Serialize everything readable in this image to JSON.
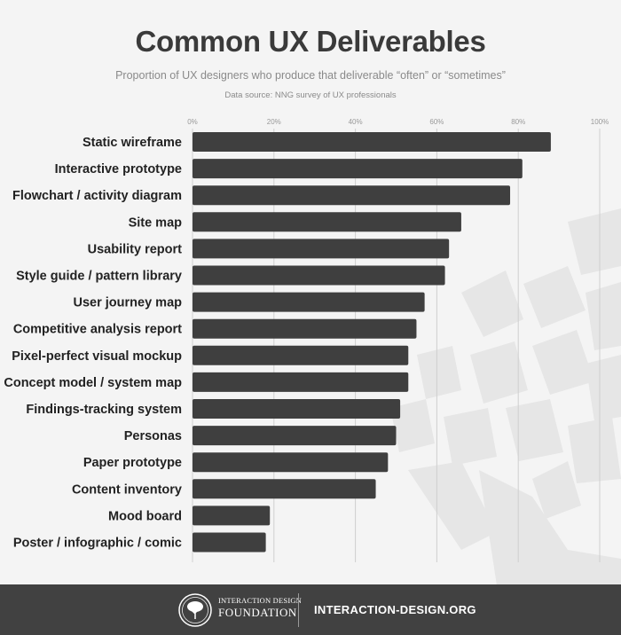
{
  "header": {
    "title": "Common UX Deliverables",
    "subtitle": "Proportion of UX designers who produce that deliverable “often” or “sometimes”",
    "source": "Data source: NNG survey of UX professionals"
  },
  "footer": {
    "org_line1": "INTERACTION DESIGN",
    "org_line2": "FOUNDATION",
    "url": "INTERACTION-DESIGN.ORG"
  },
  "colors": {
    "bar": "#3f3f3f",
    "background": "#f4f4f4",
    "footer": "#414141",
    "grid": "#cfcfcf"
  },
  "chart_data": {
    "type": "bar",
    "orientation": "horizontal",
    "title": "Common UX Deliverables",
    "xlim": [
      0,
      100
    ],
    "xticks": [
      "0%",
      "20%",
      "40%",
      "60%",
      "80%",
      "100%"
    ],
    "grid": true,
    "categories": [
      "Static wireframe",
      "Interactive prototype",
      "Flowchart / activity diagram",
      "Site map",
      "Usability report",
      "Style guide / pattern library",
      "User journey map",
      "Competitive analysis report",
      "Pixel-perfect visual mockup",
      "Concept model / system map",
      "Findings-tracking system",
      "Personas",
      "Paper prototype",
      "Content inventory",
      "Mood board",
      "Poster / infographic / comic"
    ],
    "values": [
      88,
      81,
      78,
      66,
      63,
      62,
      57,
      55,
      53,
      53,
      51,
      50,
      48,
      45,
      19,
      18
    ]
  }
}
